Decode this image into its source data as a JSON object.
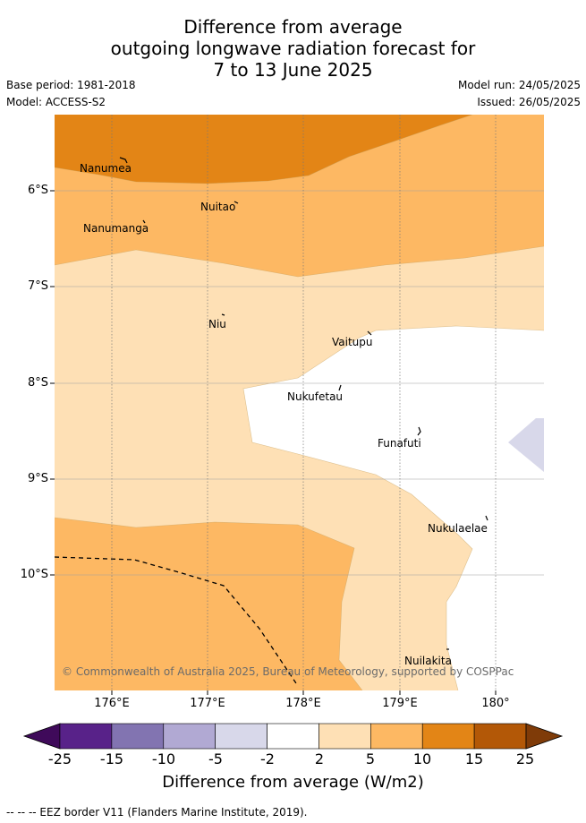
{
  "title": {
    "line1": "Difference from average",
    "line2": "outgoing longwave radiation forecast for",
    "line3": "7 to 13 June 2025"
  },
  "meta": {
    "base_period": "Base period: 1981-2018",
    "model": "Model: ACCESS-S2",
    "model_run": "Model run: 24/05/2025",
    "issued": "Issued: 26/05/2025"
  },
  "axes": {
    "lat_labels": [
      "6°S",
      "7°S",
      "8°S",
      "9°S",
      "10°S"
    ],
    "lon_labels": [
      "176°E",
      "177°E",
      "178°E",
      "179°E",
      "180°"
    ]
  },
  "islands": [
    {
      "name": "Nanumea"
    },
    {
      "name": "Nuitao"
    },
    {
      "name": "Nanumanga"
    },
    {
      "name": "Niu"
    },
    {
      "name": "Vaitupu"
    },
    {
      "name": "Nukufetau"
    },
    {
      "name": "Funafuti"
    },
    {
      "name": "Nukulaelae"
    },
    {
      "name": "Nuilakita"
    }
  ],
  "copyright": "© Commonwealth of Australia 2025, Bureau of Meteorology, supported by COSPPac",
  "colorbar": {
    "ticks": [
      "-25",
      "-15",
      "-10",
      "-5",
      "-2",
      "2",
      "5",
      "10",
      "15",
      "25"
    ],
    "colors": [
      "#3f0a5a",
      "#582289",
      "#8274b1",
      "#b1a9d3",
      "#d8d8ea",
      "#ffffff",
      "#fee0b5",
      "#fdb863",
      "#e38516",
      "#b35807",
      "#7f3b08"
    ],
    "title": "Difference from average (W/m2)"
  },
  "eez_note": "-- -- -- EEZ border V11 (Flanders Marine Institute, 2019)."
}
